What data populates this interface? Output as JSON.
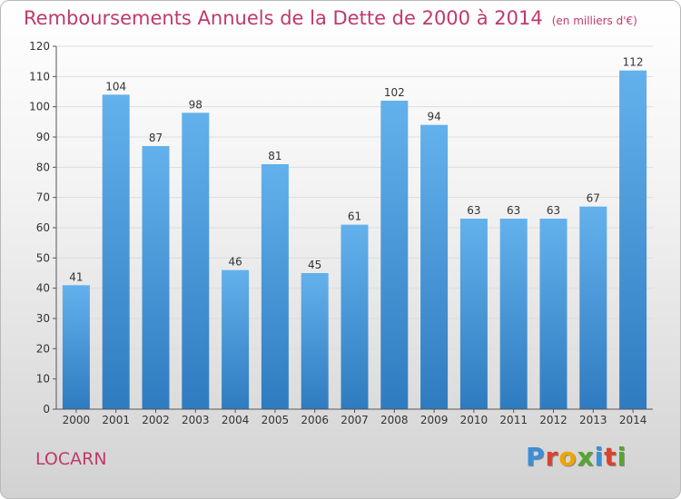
{
  "header": {
    "title": "Remboursements Annuels de la Dette de 2000 à 2014",
    "unit": "(en milliers d'€)"
  },
  "footer": {
    "commune": "LOCARN",
    "brand": "Proxiti",
    "brand_colors": [
      "#3a8fd6",
      "#d9432f",
      "#f0a500",
      "#55a630",
      "#3a8fd6",
      "#d9432f",
      "#55a630"
    ]
  },
  "colors": {
    "bar_light": "#63b1ec",
    "bar_dark": "#2f7bc0",
    "accent": "#c0396b"
  },
  "chart_data": {
    "type": "bar",
    "title": "Remboursements Annuels de la Dette de 2000 à 2014",
    "subtitle": "(en milliers d'€)",
    "xlabel": "",
    "ylabel": "",
    "categories": [
      "2000",
      "2001",
      "2002",
      "2003",
      "2004",
      "2005",
      "2006",
      "2007",
      "2008",
      "2009",
      "2010",
      "2011",
      "2012",
      "2013",
      "2014"
    ],
    "values": [
      41,
      104,
      87,
      98,
      46,
      81,
      45,
      61,
      102,
      94,
      63,
      63,
      63,
      67,
      112
    ],
    "ylim": [
      0,
      120
    ],
    "yticks": [
      0,
      10,
      20,
      30,
      40,
      50,
      60,
      70,
      80,
      90,
      100,
      110,
      120
    ],
    "grid": true
  }
}
